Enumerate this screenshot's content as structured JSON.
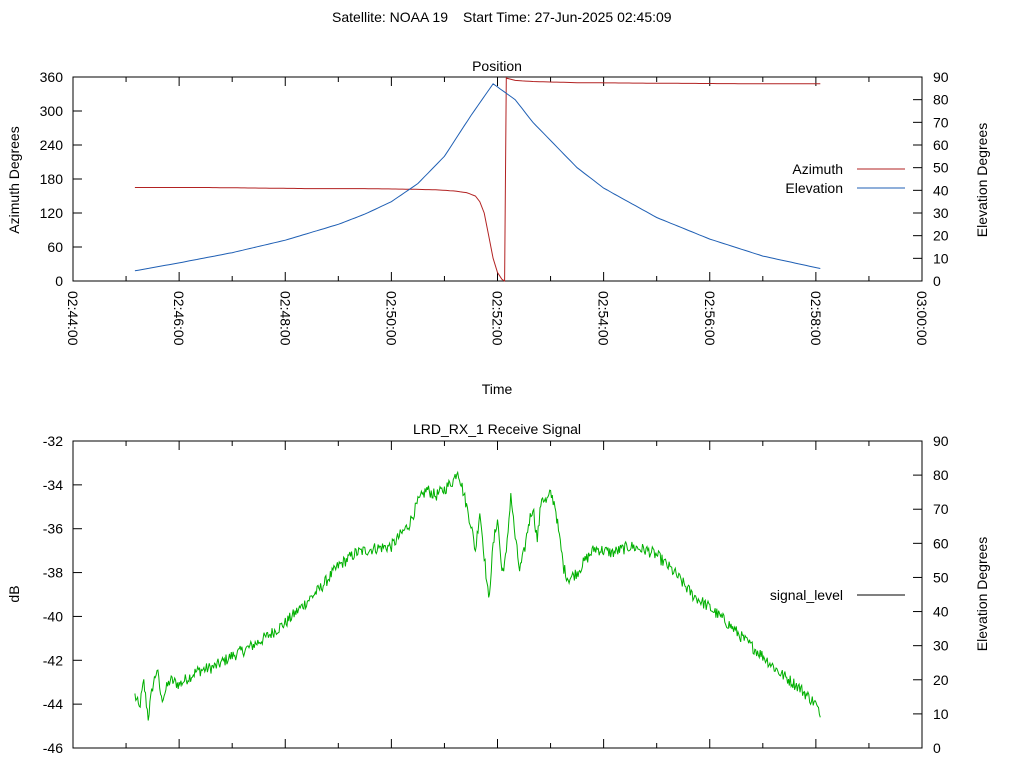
{
  "header": {
    "satellite_label": "Satellite: NOAA 19",
    "start_label": "Start Time: 27-Jun-2025 02:45:09"
  },
  "colors": {
    "azimuth": "#b22222",
    "elevation": "#1f5fb4",
    "signal": "#00b000",
    "axis": "#000000"
  },
  "chart_data": [
    {
      "type": "line",
      "title": "Position",
      "xlabel": "Time",
      "ylabel": "Azimuth Degrees",
      "y2label": "Elevation Degrees",
      "xlim": [
        "02:44:00",
        "03:00:00"
      ],
      "ylim": [
        0,
        360
      ],
      "y2lim": [
        0,
        90
      ],
      "xticks": [
        "02:44:00",
        "02:46:00",
        "02:48:00",
        "02:50:00",
        "02:52:00",
        "02:54:00",
        "02:56:00",
        "02:58:00",
        "03:00:00"
      ],
      "yticks": [
        0,
        60,
        120,
        180,
        240,
        300,
        360
      ],
      "y2ticks": [
        0,
        10,
        20,
        30,
        40,
        50,
        60,
        70,
        80,
        90
      ],
      "grid": false,
      "legend": "right",
      "series": [
        {
          "name": "Azimuth",
          "axis": "y",
          "points": [
            [
              "02:45:10",
              165
            ],
            [
              "02:46:30",
              165
            ],
            [
              "02:47:30",
              164
            ],
            [
              "02:48:30",
              163
            ],
            [
              "02:49:30",
              163
            ],
            [
              "02:50:20",
              162
            ],
            [
              "02:50:50",
              161
            ],
            [
              "02:51:10",
              159
            ],
            [
              "02:51:25",
              156
            ],
            [
              "02:51:35",
              150
            ],
            [
              "02:51:40",
              140
            ],
            [
              "02:51:45",
              120
            ],
            [
              "02:51:50",
              80
            ],
            [
              "02:51:55",
              40
            ],
            [
              "02:52:00",
              15
            ],
            [
              "02:52:05",
              3
            ],
            [
              "02:52:08",
              0
            ],
            [
              "02:52:10",
              358
            ],
            [
              "02:52:20",
              354
            ],
            [
              "02:52:40",
              352
            ],
            [
              "02:53:30",
              350
            ],
            [
              "02:55:00",
              349
            ],
            [
              "02:57:00",
              348
            ],
            [
              "02:58:05",
              348
            ]
          ]
        },
        {
          "name": "Elevation",
          "axis": "y2",
          "points": [
            [
              "02:45:10",
              4.5
            ],
            [
              "02:46:00",
              8
            ],
            [
              "02:47:00",
              12.5
            ],
            [
              "02:48:00",
              18
            ],
            [
              "02:49:00",
              25
            ],
            [
              "02:49:30",
              29.5
            ],
            [
              "02:50:00",
              35
            ],
            [
              "02:50:30",
              43
            ],
            [
              "02:51:00",
              55
            ],
            [
              "02:51:30",
              73
            ],
            [
              "02:51:55",
              87
            ],
            [
              "02:52:20",
              80
            ],
            [
              "02:52:40",
              70
            ],
            [
              "02:53:00",
              62
            ],
            [
              "02:53:30",
              50
            ],
            [
              "02:54:00",
              41
            ],
            [
              "02:55:00",
              28
            ],
            [
              "02:56:00",
              18.5
            ],
            [
              "02:57:00",
              11
            ],
            [
              "02:58:05",
              5.5
            ]
          ]
        }
      ]
    },
    {
      "type": "line",
      "title": "LRD_RX_1 Receive Signal",
      "xlabel": "",
      "ylabel": "dB",
      "y2label": "Elevation Degrees",
      "xlim": [
        "02:44:00",
        "03:00:00"
      ],
      "ylim": [
        -46,
        -32
      ],
      "y2lim": [
        0,
        90
      ],
      "yticks": [
        -46,
        -44,
        -42,
        -40,
        -38,
        -36,
        -34,
        -32
      ],
      "y2ticks": [
        0,
        10,
        20,
        30,
        40,
        50,
        60,
        70,
        80,
        90
      ],
      "grid": false,
      "legend": "right",
      "series": [
        {
          "name": "signal_level",
          "axis": "y",
          "points": [
            [
              "02:45:10",
              -43.6
            ],
            [
              "02:45:15",
              -44.2
            ],
            [
              "02:45:20",
              -43.0
            ],
            [
              "02:45:25",
              -44.6
            ],
            [
              "02:45:30",
              -43.2
            ],
            [
              "02:45:35",
              -42.4
            ],
            [
              "02:45:40",
              -43.8
            ],
            [
              "02:45:50",
              -42.9
            ],
            [
              "02:46:00",
              -43.1
            ],
            [
              "02:46:20",
              -42.5
            ],
            [
              "02:46:40",
              -42.3
            ],
            [
              "02:47:00",
              -41.8
            ],
            [
              "02:47:20",
              -41.4
            ],
            [
              "02:47:40",
              -40.9
            ],
            [
              "02:48:00",
              -40.3
            ],
            [
              "02:48:20",
              -39.5
            ],
            [
              "02:48:40",
              -38.7
            ],
            [
              "02:49:00",
              -37.7
            ],
            [
              "02:49:20",
              -37.1
            ],
            [
              "02:49:40",
              -36.9
            ],
            [
              "02:50:00",
              -36.8
            ],
            [
              "02:50:20",
              -35.8
            ],
            [
              "02:50:30",
              -34.8
            ],
            [
              "02:50:40",
              -34.2
            ],
            [
              "02:50:50",
              -34.5
            ],
            [
              "02:51:00",
              -34.2
            ],
            [
              "02:51:10",
              -33.8
            ],
            [
              "02:51:15",
              -33.3
            ],
            [
              "02:51:20",
              -34.1
            ],
            [
              "02:51:30",
              -35.8
            ],
            [
              "02:51:35",
              -37.0
            ],
            [
              "02:51:40",
              -35.2
            ],
            [
              "02:51:45",
              -37.2
            ],
            [
              "02:51:50",
              -39.3
            ],
            [
              "02:51:55",
              -36.8
            ],
            [
              "02:52:00",
              -35.5
            ],
            [
              "02:52:05",
              -38.0
            ],
            [
              "02:52:10",
              -37.2
            ],
            [
              "02:52:15",
              -34.4
            ],
            [
              "02:52:20",
              -36.4
            ],
            [
              "02:52:25",
              -37.9
            ],
            [
              "02:52:30",
              -37.1
            ],
            [
              "02:52:35",
              -35.8
            ],
            [
              "02:52:40",
              -35.0
            ],
            [
              "02:52:45",
              -36.5
            ],
            [
              "02:52:50",
              -34.5
            ],
            [
              "02:52:55",
              -34.8
            ],
            [
              "02:53:00",
              -34.4
            ],
            [
              "02:53:05",
              -34.9
            ],
            [
              "02:53:10",
              -36.4
            ],
            [
              "02:53:15",
              -37.8
            ],
            [
              "02:53:20",
              -38.3
            ],
            [
              "02:53:30",
              -38.0
            ],
            [
              "02:53:40",
              -37.4
            ],
            [
              "02:53:50",
              -36.9
            ],
            [
              "02:54:10",
              -37.1
            ],
            [
              "02:54:30",
              -36.8
            ],
            [
              "02:54:50",
              -37.0
            ],
            [
              "02:55:00",
              -37.2
            ],
            [
              "02:55:20",
              -38.0
            ],
            [
              "02:55:40",
              -39.0
            ],
            [
              "02:56:00",
              -39.6
            ],
            [
              "02:56:20",
              -40.3
            ],
            [
              "02:56:40",
              -41.1
            ],
            [
              "02:57:00",
              -41.8
            ],
            [
              "02:57:20",
              -42.6
            ],
            [
              "02:57:40",
              -43.2
            ],
            [
              "02:58:00",
              -44.0
            ],
            [
              "02:58:05",
              -44.6
            ]
          ]
        }
      ]
    }
  ]
}
